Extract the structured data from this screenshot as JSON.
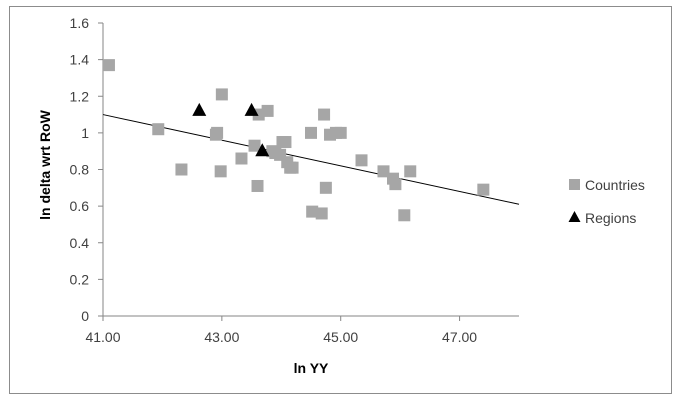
{
  "chart_data": {
    "type": "scatter",
    "xlabel": "ln YY",
    "ylabel": "ln delta wrt RoW",
    "xlim": [
      41,
      48
    ],
    "ylim": [
      0,
      1.6
    ],
    "x_ticks": [
      41,
      43,
      45,
      47
    ],
    "x_tick_labels": [
      "41.00",
      "43.00",
      "45.00",
      "47.00"
    ],
    "y_ticks": [
      0,
      0.2,
      0.4,
      0.6,
      0.8,
      1,
      1.2,
      1.4,
      1.6
    ],
    "y_tick_labels": [
      "0",
      "0.2",
      "0.4",
      "0.6",
      "0.8",
      "1",
      "1.2",
      "1.4",
      "1.6"
    ],
    "grid": false,
    "legend_position": "right",
    "series": [
      {
        "name": "Countries",
        "marker": "square",
        "color": "#a6a6a6",
        "points": [
          [
            41.1,
            1.37
          ],
          [
            41.93,
            1.02
          ],
          [
            42.32,
            0.8
          ],
          [
            42.9,
            0.99
          ],
          [
            42.92,
            1.0
          ],
          [
            42.98,
            0.79
          ],
          [
            43.0,
            1.21
          ],
          [
            43.33,
            0.86
          ],
          [
            43.55,
            0.93
          ],
          [
            43.6,
            0.71
          ],
          [
            43.62,
            1.1
          ],
          [
            43.77,
            1.12
          ],
          [
            43.85,
            0.9
          ],
          [
            43.9,
            0.89
          ],
          [
            43.98,
            0.88
          ],
          [
            44.02,
            0.95
          ],
          [
            44.07,
            0.95
          ],
          [
            44.1,
            0.84
          ],
          [
            44.15,
            0.81
          ],
          [
            44.19,
            0.81
          ],
          [
            44.5,
            1.0
          ],
          [
            44.52,
            0.57
          ],
          [
            44.68,
            0.56
          ],
          [
            44.72,
            1.1
          ],
          [
            44.75,
            0.7
          ],
          [
            44.82,
            0.99
          ],
          [
            44.92,
            1.0
          ],
          [
            45.0,
            1.0
          ],
          [
            45.35,
            0.85
          ],
          [
            45.72,
            0.79
          ],
          [
            45.88,
            0.75
          ],
          [
            45.92,
            0.72
          ],
          [
            46.07,
            0.55
          ],
          [
            46.17,
            0.79
          ],
          [
            47.4,
            0.69
          ]
        ]
      },
      {
        "name": "Regions",
        "marker": "triangle",
        "color": "#000000",
        "points": [
          [
            42.62,
            1.12
          ],
          [
            43.5,
            1.12
          ],
          [
            43.68,
            0.9
          ]
        ]
      }
    ],
    "trendline": {
      "x1": 41,
      "y1": 1.1,
      "x2": 48,
      "y2": 0.61,
      "color": "#000000"
    }
  }
}
